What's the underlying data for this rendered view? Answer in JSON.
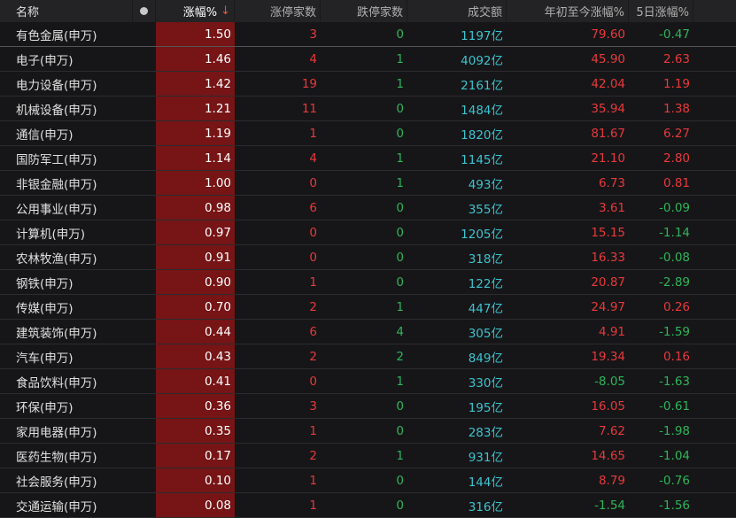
{
  "header": {
    "name": "名称",
    "pct": "涨幅%",
    "sort_icon": "arrow-down-icon",
    "limit_up": "涨停家数",
    "limit_down": "跌停家数",
    "amount": "成交额",
    "ytd": "年初至今涨幅%",
    "d5": "5日涨幅%"
  },
  "colors": {
    "up": "#e8393c",
    "down": "#2fb45a",
    "amount": "#3cc3cf",
    "highlight": "#761416"
  },
  "rows": [
    {
      "name": "有色金属(申万)",
      "pct": "1.50",
      "up": "3",
      "dn": "0",
      "amt": "1197亿",
      "ytd": "79.60",
      "d5": "-0.47"
    },
    {
      "name": "电子(申万)",
      "pct": "1.46",
      "up": "4",
      "dn": "1",
      "amt": "4092亿",
      "ytd": "45.90",
      "d5": "2.63"
    },
    {
      "name": "电力设备(申万)",
      "pct": "1.42",
      "up": "19",
      "dn": "1",
      "amt": "2161亿",
      "ytd": "42.04",
      "d5": "1.19"
    },
    {
      "name": "机械设备(申万)",
      "pct": "1.21",
      "up": "11",
      "dn": "0",
      "amt": "1484亿",
      "ytd": "35.94",
      "d5": "1.38"
    },
    {
      "name": "通信(申万)",
      "pct": "1.19",
      "up": "1",
      "dn": "0",
      "amt": "1820亿",
      "ytd": "81.67",
      "d5": "6.27"
    },
    {
      "name": "国防军工(申万)",
      "pct": "1.14",
      "up": "4",
      "dn": "1",
      "amt": "1145亿",
      "ytd": "21.10",
      "d5": "2.80"
    },
    {
      "name": "非银金融(申万)",
      "pct": "1.00",
      "up": "0",
      "dn": "1",
      "amt": "493亿",
      "ytd": "6.73",
      "d5": "0.81"
    },
    {
      "name": "公用事业(申万)",
      "pct": "0.98",
      "up": "6",
      "dn": "0",
      "amt": "355亿",
      "ytd": "3.61",
      "d5": "-0.09"
    },
    {
      "name": "计算机(申万)",
      "pct": "0.97",
      "up": "0",
      "dn": "0",
      "amt": "1205亿",
      "ytd": "15.15",
      "d5": "-1.14"
    },
    {
      "name": "农林牧渔(申万)",
      "pct": "0.91",
      "up": "0",
      "dn": "0",
      "amt": "318亿",
      "ytd": "16.33",
      "d5": "-0.08"
    },
    {
      "name": "钢铁(申万)",
      "pct": "0.90",
      "up": "1",
      "dn": "0",
      "amt": "122亿",
      "ytd": "20.87",
      "d5": "-2.89"
    },
    {
      "name": "传媒(申万)",
      "pct": "0.70",
      "up": "2",
      "dn": "1",
      "amt": "447亿",
      "ytd": "24.97",
      "d5": "0.26"
    },
    {
      "name": "建筑装饰(申万)",
      "pct": "0.44",
      "up": "6",
      "dn": "4",
      "amt": "305亿",
      "ytd": "4.91",
      "d5": "-1.59"
    },
    {
      "name": "汽车(申万)",
      "pct": "0.43",
      "up": "2",
      "dn": "2",
      "amt": "849亿",
      "ytd": "19.34",
      "d5": "0.16"
    },
    {
      "name": "食品饮料(申万)",
      "pct": "0.41",
      "up": "0",
      "dn": "1",
      "amt": "330亿",
      "ytd": "-8.05",
      "d5": "-1.63"
    },
    {
      "name": "环保(申万)",
      "pct": "0.36",
      "up": "3",
      "dn": "0",
      "amt": "195亿",
      "ytd": "16.05",
      "d5": "-0.61"
    },
    {
      "name": "家用电器(申万)",
      "pct": "0.35",
      "up": "1",
      "dn": "0",
      "amt": "283亿",
      "ytd": "7.62",
      "d5": "-1.98"
    },
    {
      "name": "医药生物(申万)",
      "pct": "0.17",
      "up": "2",
      "dn": "1",
      "amt": "931亿",
      "ytd": "14.65",
      "d5": "-1.04"
    },
    {
      "name": "社会服务(申万)",
      "pct": "0.10",
      "up": "1",
      "dn": "0",
      "amt": "144亿",
      "ytd": "8.79",
      "d5": "-0.76"
    },
    {
      "name": "交通运输(申万)",
      "pct": "0.08",
      "up": "1",
      "dn": "0",
      "amt": "316亿",
      "ytd": "-1.54",
      "d5": "-1.56"
    }
  ]
}
